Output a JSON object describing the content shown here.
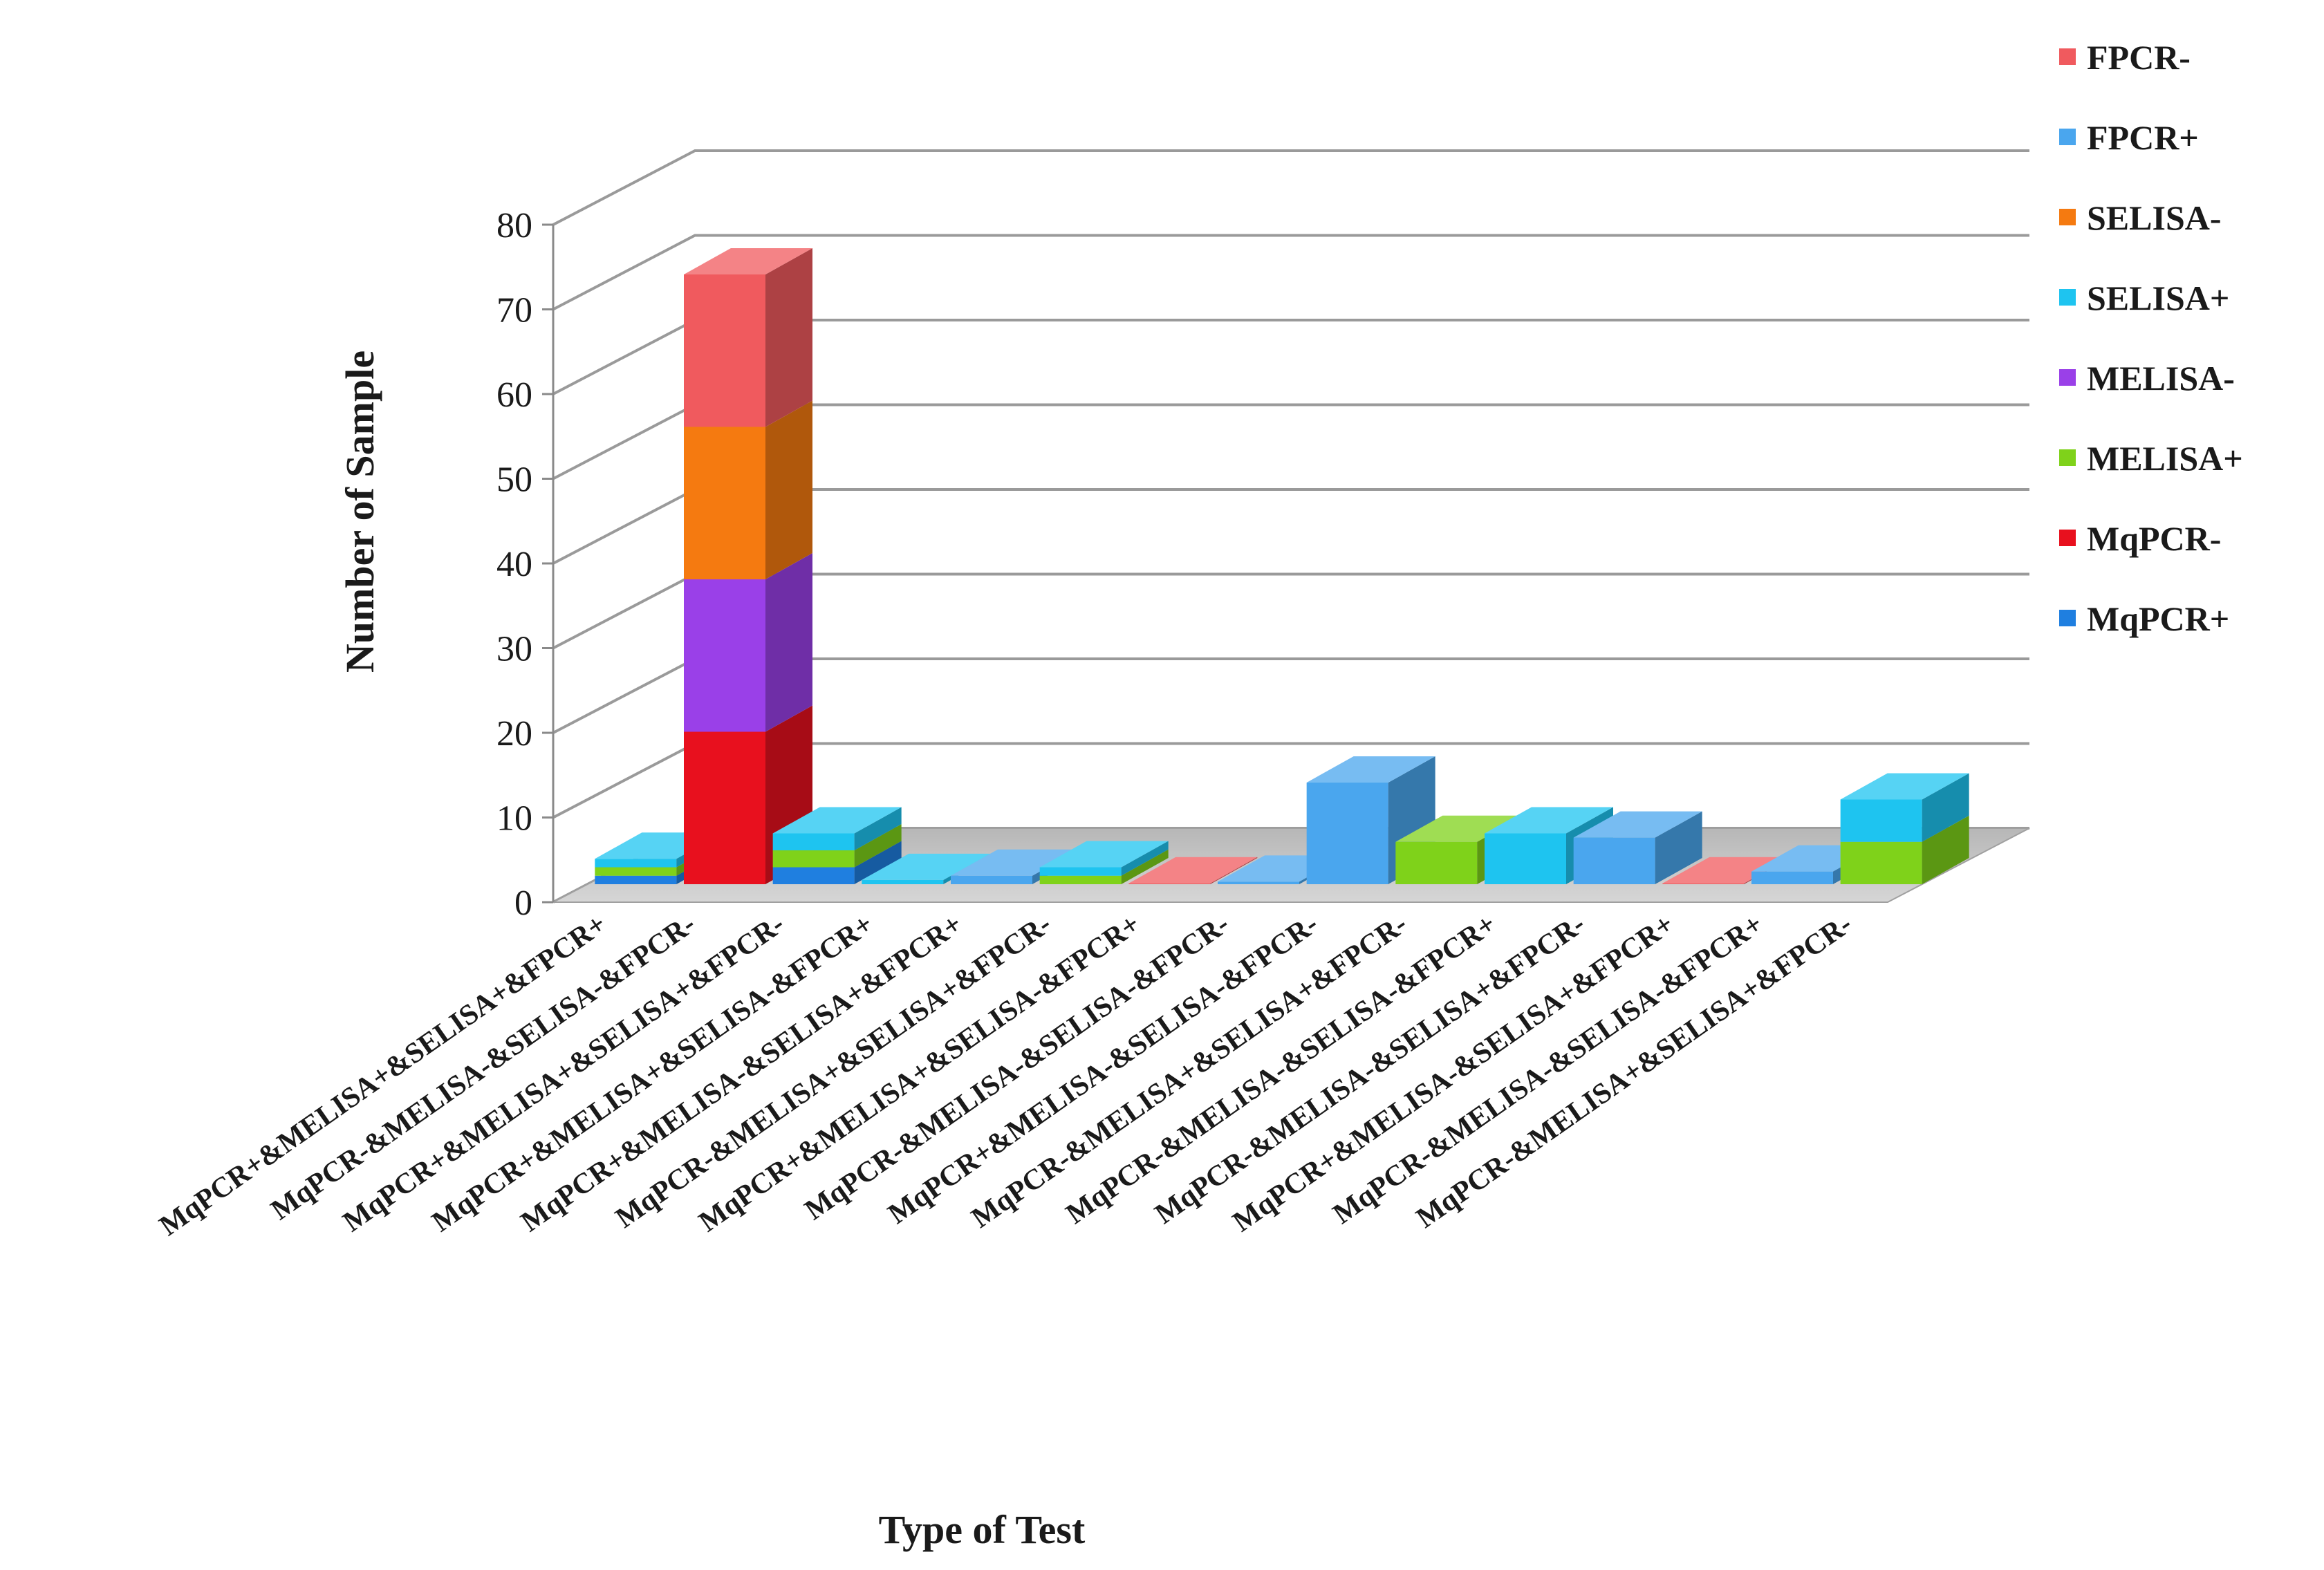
{
  "chart_data": {
    "type": "bar",
    "stacked": true,
    "three_d": true,
    "title": "",
    "xlabel": "Type of Test",
    "ylabel": "Number of Sample",
    "ylim": [
      0,
      80
    ],
    "yticks": [
      0,
      10,
      20,
      30,
      40,
      50,
      60,
      70,
      80
    ],
    "grid": true,
    "legend_position": "right",
    "categories": [
      "MqPCR+&MELISA+&SELISA+&FPCR+",
      "MqPCR-&MELISA-&SELISA-&FPCR-",
      "MqPCR+&MELISA+&SELISA+&FPCR-",
      "MqPCR+&MELISA+&SELISA-&FPCR+",
      "MqPCR+&MELISA-&SELISA+&FPCR+",
      "MqPCR-&MELISA+&SELISA+&FPCR-",
      "MqPCR+&MELISA+&SELISA-&FPCR+",
      "MqPCR-&MELISA-&SELISA-&FPCR-",
      "MqPCR+&MELISA-&SELISA-&FPCR-",
      "MqPCR-&MELISA+&SELISA+&FPCR-",
      "MqPCR-&MELISA-&SELISA-&FPCR+",
      "MqPCR-&MELISA-&SELISA+&FPCR-",
      "MqPCR+&MELISA-&SELISA+&FPCR+",
      "MqPCR-&MELISA-&SELISA-&FPCR+",
      "MqPCR-&MELISA+&SELISA+&FPCR-"
    ],
    "series": [
      {
        "name": "MqPCR+",
        "color": "#1f7fe0",
        "values": [
          1,
          0,
          2,
          0,
          0,
          0,
          0,
          0,
          0,
          0,
          0,
          0,
          0,
          0,
          0
        ]
      },
      {
        "name": "MqPCR-",
        "color": "#e8101e",
        "values": [
          0,
          18,
          0,
          0,
          0,
          0,
          0,
          0,
          0,
          0,
          0,
          0,
          0,
          0,
          0
        ]
      },
      {
        "name": "MELISA+",
        "color": "#7fd21a",
        "values": [
          1,
          0,
          2,
          0,
          0,
          1,
          0,
          0,
          0,
          5,
          0,
          0,
          0,
          0,
          5
        ]
      },
      {
        "name": "MELISA-",
        "color": "#9a40e8",
        "values": [
          0,
          18,
          0,
          0,
          0,
          0,
          0,
          0,
          0,
          0,
          0,
          0,
          0,
          0,
          0
        ]
      },
      {
        "name": "SELISA+",
        "color": "#1ec4f0",
        "values": [
          1,
          0,
          2,
          0.5,
          0,
          1,
          0,
          0,
          0,
          0,
          6,
          0,
          0,
          0,
          5
        ]
      },
      {
        "name": "SELISA-",
        "color": "#f57a10",
        "values": [
          0,
          18,
          0,
          0,
          0,
          0,
          0,
          0,
          0,
          0,
          0,
          0,
          0,
          0,
          0
        ]
      },
      {
        "name": "FPCR+",
        "color": "#4aa6ee",
        "values": [
          0,
          0,
          0,
          0,
          1,
          0,
          0,
          0.3,
          12,
          0,
          0,
          5.5,
          0,
          1.5,
          0
        ]
      },
      {
        "name": "FPCR-",
        "color": "#f05a5e",
        "values": [
          0,
          18,
          0,
          0,
          0,
          0,
          0.1,
          0,
          0,
          0,
          0,
          0,
          0.1,
          0,
          0
        ]
      }
    ],
    "legend_order": [
      "FPCR-",
      "FPCR+",
      "SELISA-",
      "SELISA+",
      "MELISA-",
      "MELISA+",
      "MqPCR-",
      "MqPCR+"
    ]
  }
}
